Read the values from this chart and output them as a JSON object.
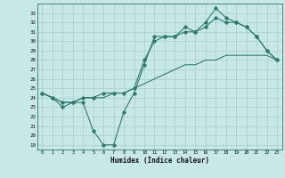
{
  "title": "",
  "xlabel": "Humidex (Indice chaleur)",
  "bg_color": "#c8e8e8",
  "line_color": "#2d7b6e",
  "grid_color": "#a8cece",
  "xlim": [
    -0.5,
    23.5
  ],
  "ylim": [
    18.5,
    34.0
  ],
  "xticks": [
    0,
    1,
    2,
    3,
    4,
    5,
    6,
    7,
    8,
    9,
    10,
    11,
    12,
    13,
    14,
    15,
    16,
    17,
    18,
    19,
    20,
    21,
    22,
    23
  ],
  "yticks": [
    19,
    20,
    21,
    22,
    23,
    24,
    25,
    26,
    27,
    28,
    29,
    30,
    31,
    32,
    33
  ],
  "series1_x": [
    0,
    1,
    2,
    3,
    4,
    5,
    6,
    7,
    8,
    9,
    10,
    11,
    12,
    13,
    14,
    15,
    16,
    17,
    18,
    19,
    20,
    21,
    22,
    23
  ],
  "series1_y": [
    24.5,
    24.0,
    23.0,
    23.5,
    23.5,
    20.5,
    19.0,
    19.0,
    22.5,
    24.5,
    27.5,
    30.5,
    30.5,
    30.5,
    31.5,
    31.0,
    32.0,
    33.5,
    32.5,
    32.0,
    31.5,
    30.5,
    29.0,
    28.0
  ],
  "series2_x": [
    0,
    1,
    2,
    3,
    4,
    5,
    6,
    7,
    8,
    9,
    10,
    11,
    12,
    13,
    14,
    15,
    16,
    17,
    18,
    19,
    20,
    21,
    22,
    23
  ],
  "series2_y": [
    24.5,
    24.0,
    23.5,
    23.5,
    24.0,
    24.0,
    24.0,
    24.5,
    24.5,
    25.0,
    25.5,
    26.0,
    26.5,
    27.0,
    27.5,
    27.5,
    28.0,
    28.0,
    28.5,
    28.5,
    28.5,
    28.5,
    28.5,
    28.0
  ],
  "series3_x": [
    0,
    1,
    2,
    3,
    4,
    5,
    6,
    7,
    8,
    9,
    10,
    11,
    12,
    13,
    14,
    15,
    16,
    17,
    18,
    19,
    20,
    21,
    22,
    23
  ],
  "series3_y": [
    24.5,
    24.0,
    23.5,
    23.5,
    24.0,
    24.0,
    24.5,
    24.5,
    24.5,
    25.0,
    28.0,
    30.0,
    30.5,
    30.5,
    31.0,
    31.0,
    31.5,
    32.5,
    32.0,
    32.0,
    31.5,
    30.5,
    29.0,
    28.0
  ]
}
